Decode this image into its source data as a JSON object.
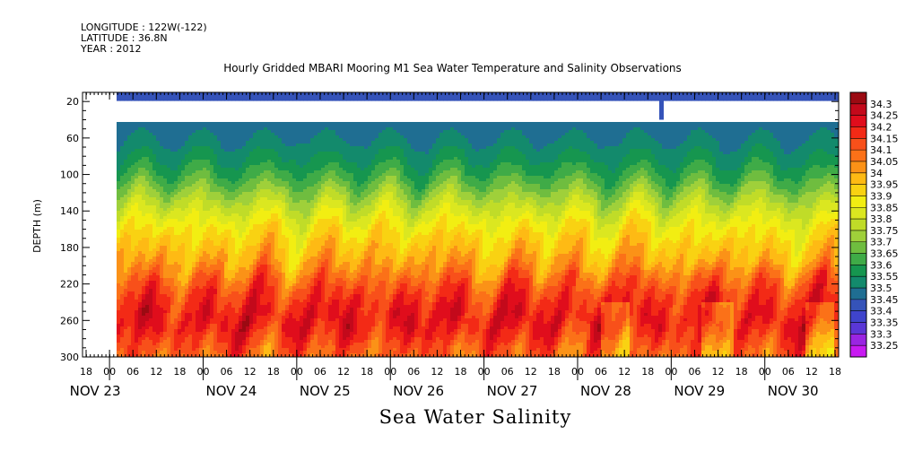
{
  "header": {
    "longitude": "LONGITUDE : 122W(-122)",
    "latitude": "LATITUDE : 36.8N",
    "year": "YEAR : 2012"
  },
  "chart_data": {
    "type": "heatmap",
    "title": "Hourly Gridded MBARI Mooring M1 Sea Water Temperature and Salinity Observations",
    "xlabel": "Sea Water Salinity",
    "ylabel": "DEPTH (m)",
    "y_ticks": [
      20,
      60,
      100,
      140,
      180,
      220,
      260,
      300
    ],
    "ylim": [
      300,
      10
    ],
    "x_hour_ticks": [
      "18",
      "00",
      "06",
      "12",
      "18",
      "00",
      "06",
      "12",
      "18",
      "00",
      "06",
      "12",
      "18",
      "00",
      "06",
      "12",
      "18",
      "00",
      "06",
      "12",
      "18",
      "00",
      "06",
      "12",
      "18",
      "00",
      "06",
      "12",
      "18",
      "00",
      "06",
      "12",
      "18"
    ],
    "x_day_labels": [
      "NOV 23",
      "NOV 24",
      "NOV 25",
      "NOV 26",
      "NOV 27",
      "NOV 28",
      "NOV 29",
      "NOV 30"
    ],
    "colorbar": {
      "levels": [
        "34.3",
        "34.25",
        "34.2",
        "34.15",
        "34.1",
        "34.05",
        "34",
        "33.95",
        "33.9",
        "33.85",
        "33.8",
        "33.75",
        "33.7",
        "33.65",
        "33.6",
        "33.55",
        "33.5",
        "33.45",
        "33.4",
        "33.35",
        "33.3",
        "33.25"
      ],
      "colors": [
        "#9b0a12",
        "#c3091b",
        "#e00d1c",
        "#f32a16",
        "#f8501a",
        "#fb7118",
        "#fb9217",
        "#feba14",
        "#f9d212",
        "#f2ee12",
        "#dbe720",
        "#c0dc28",
        "#9fd03a",
        "#6fbd3f",
        "#3fab47",
        "#16964f",
        "#138a6c",
        "#1f6e92",
        "#3553b9",
        "#3f44cc",
        "#5a37d6",
        "#9a25e2",
        "#c81af2"
      ]
    },
    "depth_profile": [
      {
        "depth": 10,
        "salinity": 33.42
      },
      {
        "depth": 40,
        "salinity": 33.47
      },
      {
        "depth": 60,
        "salinity": 33.5
      },
      {
        "depth": 80,
        "salinity": 33.55
      },
      {
        "depth": 100,
        "salinity": 33.62
      },
      {
        "depth": 120,
        "salinity": 33.72
      },
      {
        "depth": 140,
        "salinity": 33.82
      },
      {
        "depth": 160,
        "salinity": 33.9
      },
      {
        "depth": 180,
        "salinity": 33.96
      },
      {
        "depth": 200,
        "salinity": 34.02
      },
      {
        "depth": 220,
        "salinity": 34.12
      },
      {
        "depth": 240,
        "salinity": 34.18
      },
      {
        "depth": 260,
        "salinity": 34.22
      },
      {
        "depth": 280,
        "salinity": 34.15
      },
      {
        "depth": 300,
        "salinity": 34.08
      }
    ]
  }
}
